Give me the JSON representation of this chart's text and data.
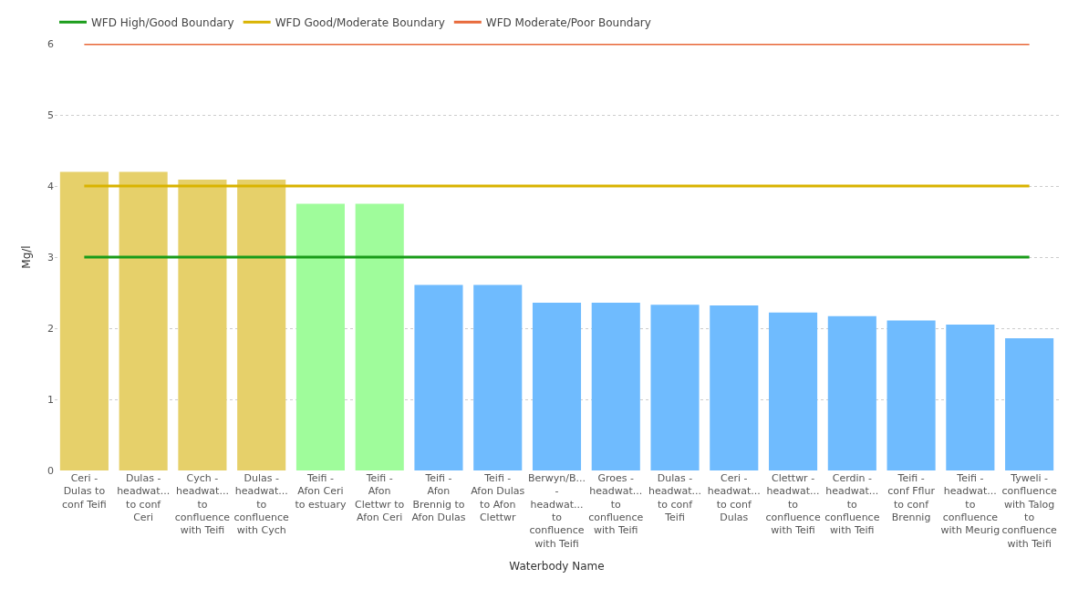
{
  "chart_data": {
    "type": "bar",
    "xlabel": "Waterbody Name",
    "ylabel": "Mg/l",
    "categories": [
      "Ceri - Dulas to conf Teifi",
      "Dulas - headwat... to conf Ceri",
      "Cych - headwat... to confluence with Teifi",
      "Dulas - headwat... to confluence with Cych",
      "Teifi - Afon Ceri to estuary",
      "Teifi - Afon Clettwr to Afon Ceri",
      "Teifi - Afon Brennig to Afon Dulas",
      "Teifi - Afon Dulas to Afon Clettwr",
      "Berwyn/B... - headwat... to confluence with Teifi",
      "Groes - headwat... to confluence with Teifi",
      "Dulas - headwat... to conf Teifi",
      "Ceri - headwat... to conf Dulas",
      "Clettwr - headwat... to confluence with Teifi",
      "Cerdin - headwat... to confluence with Teifi",
      "Teifi - conf Fflur to conf Brennig",
      "Teifi - headwat... to confluence with Meurig",
      "Tyweli - confluence with Talog to confluence with Teifi"
    ],
    "series": [
      {
        "colors": [
          "#e6d06a",
          "#e6d06a",
          "#e6d06a",
          "#e6d06a",
          "#9ffc9b",
          "#9ffc9b",
          "#6fbbfe",
          "#6fbbfe",
          "#6fbbfe",
          "#6fbbfe",
          "#6fbbfe",
          "#6fbbfe",
          "#6fbbfe",
          "#6fbbfe",
          "#6fbbfe",
          "#6fbbfe",
          "#6fbbfe"
        ],
        "values": [
          4.2,
          4.2,
          4.09,
          4.09,
          3.75,
          3.75,
          2.61,
          2.61,
          2.36,
          2.36,
          2.33,
          2.32,
          2.22,
          2.17,
          2.11,
          2.05,
          1.86
        ]
      },
      {
        "type": "line",
        "name": "WFD High/Good Boundary",
        "color": "#1a9c1a",
        "values": [
          3,
          3,
          3,
          3,
          3,
          3,
          3,
          3,
          3,
          3,
          3,
          3,
          3,
          3,
          3,
          3,
          3
        ]
      },
      {
        "type": "line",
        "name": "WFD Good/Moderate Boundary",
        "color": "#d9b300",
        "values": [
          4,
          4,
          4,
          4,
          4,
          4,
          4,
          4,
          4,
          4,
          4,
          4,
          4,
          4,
          4,
          4,
          4
        ]
      },
      {
        "type": "line",
        "name": "WFD Moderate/Poor Boundary",
        "color": "#e8693a",
        "values": [
          6,
          6,
          6,
          6,
          6,
          6,
          6,
          6,
          6,
          6,
          6,
          6,
          6,
          6,
          6,
          6,
          6
        ]
      }
    ],
    "ylim": [
      0,
      6
    ],
    "yticks": [
      0,
      1,
      2,
      3,
      4,
      5,
      6
    ],
    "grid": "y",
    "legend": "top left",
    "marker": "none",
    "line_style": "solid"
  }
}
